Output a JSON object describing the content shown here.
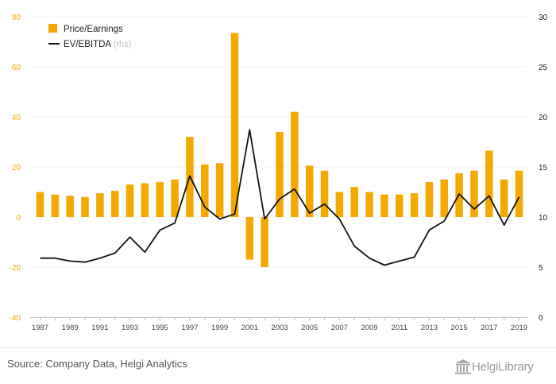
{
  "chart_data": {
    "type": "bar+line",
    "years": [
      1987,
      1988,
      1989,
      1990,
      1991,
      1992,
      1993,
      1994,
      1995,
      1996,
      1997,
      1998,
      1999,
      2000,
      2001,
      2002,
      2003,
      2004,
      2005,
      2006,
      2007,
      2008,
      2009,
      2010,
      2011,
      2012,
      2013,
      2014,
      2015,
      2016,
      2017,
      2018,
      2019
    ],
    "x_tick_labels": [
      "1987",
      "1989",
      "1991",
      "1993",
      "1995",
      "1997",
      "1999",
      "2001",
      "2003",
      "2005",
      "2007",
      "2009",
      "2011",
      "2013",
      "2015",
      "2017",
      "2019"
    ],
    "left_axis": {
      "ylim": [
        -40,
        80
      ],
      "ticks": [
        "80",
        "60",
        "40",
        "20",
        "0",
        "-20",
        "-40"
      ]
    },
    "right_axis": {
      "ylim": [
        0,
        30
      ],
      "ticks": [
        "30",
        "25",
        "20",
        "15",
        "10",
        "5",
        "0"
      ]
    },
    "series": [
      {
        "name": "Price/Earnings",
        "type": "bar",
        "axis": "left",
        "color": "#f4a900",
        "values": [
          10,
          9,
          8.5,
          8,
          9.5,
          10.5,
          13,
          13.5,
          14,
          15,
          32,
          21,
          21.5,
          73.5,
          -17,
          -20,
          34,
          42,
          20.5,
          18.5,
          10,
          12,
          10,
          9,
          9,
          9.5,
          14,
          15,
          17.5,
          18.5,
          26.5,
          15,
          18.5
        ]
      },
      {
        "name": "EV/EBITDA",
        "note": "(rhs)",
        "type": "line",
        "axis": "right",
        "color": "#111111",
        "values": [
          5.9,
          5.9,
          5.6,
          5.5,
          5.9,
          6.4,
          8.0,
          6.5,
          8.7,
          9.4,
          14.1,
          11.0,
          9.8,
          10.3,
          18.7,
          9.8,
          11.8,
          12.8,
          10.4,
          11.3,
          9.8,
          7.1,
          5.9,
          5.2,
          5.6,
          6.0,
          8.7,
          9.6,
          12.3,
          10.8,
          12.1,
          9.2,
          12.0
        ]
      }
    ]
  },
  "legend": {
    "pe_label": "Price/Earnings",
    "ev_label": "EV/EBITDA",
    "ev_note": "(rhs)"
  },
  "footer": {
    "source": "Source: Company Data, Helgi Analytics",
    "logo_text": "HelgiLibrary"
  }
}
